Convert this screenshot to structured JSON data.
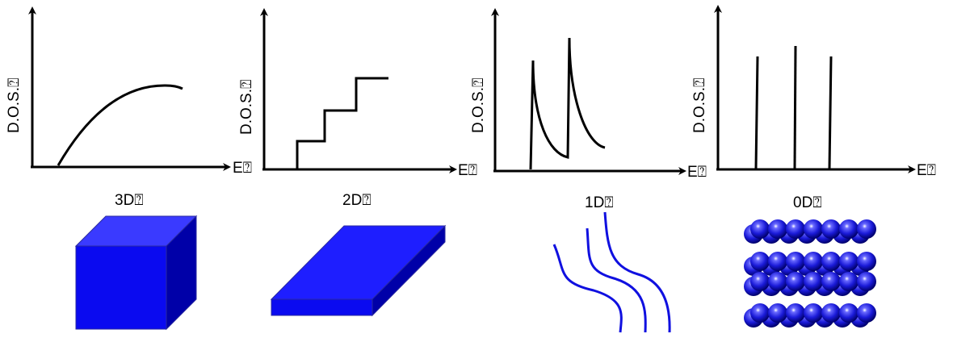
{
  "panels": [
    {
      "dos_label": "D.O.S.⍰",
      "energy_label": "E⍰",
      "dim_label": "3D⍰"
    },
    {
      "dos_label": "D.O.S.⍰",
      "energy_label": "E⍰",
      "dim_label": "2D⍰"
    },
    {
      "dos_label": "D.O.S.⍰",
      "energy_label": "E⍰",
      "dim_label": "1D⍰"
    },
    {
      "dos_label": "D.O.S.⍰",
      "energy_label": "E⍰",
      "dim_label": "0D⍰"
    }
  ],
  "colors": {
    "shape_blue": "#0a0af0",
    "wire_blue": "#1010e0",
    "axis": "#000000"
  }
}
